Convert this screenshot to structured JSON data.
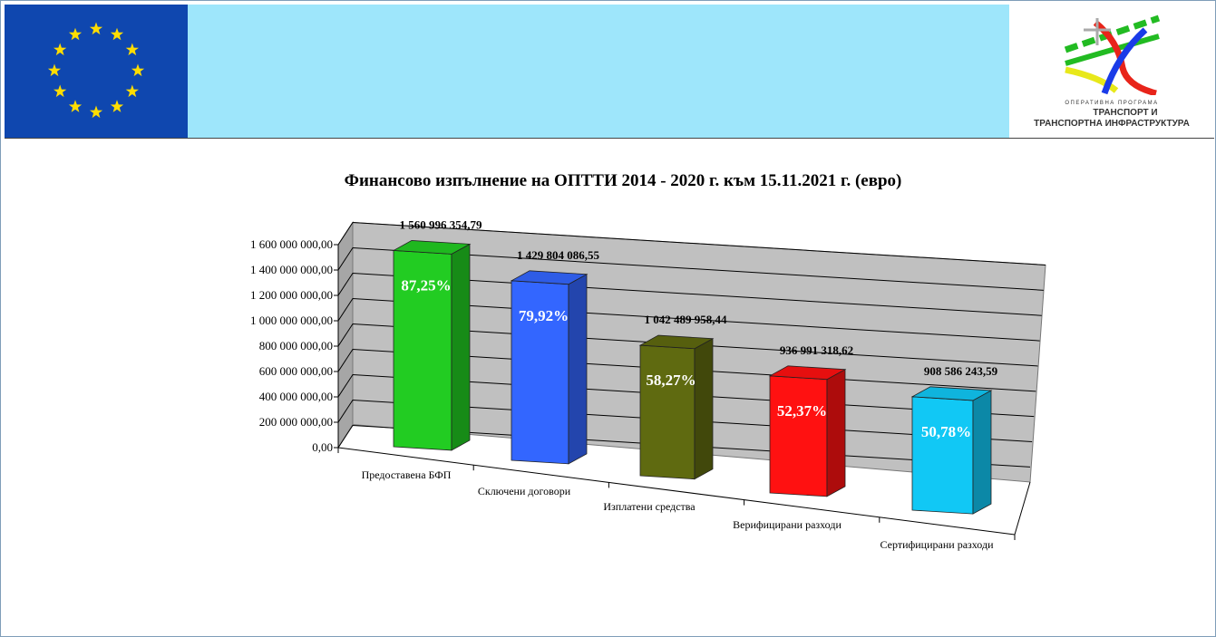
{
  "logo": {
    "subtitle": "ОПЕРАТИВНА ПРОГРАМА",
    "line1": "ТРАНСПОРТ И",
    "line2": "ТРАНСПОРТНА ИНФРАСТРУКТУРА"
  },
  "colors": {
    "header_bg": "#9ee6fb",
    "eu_blue": "#0f47af",
    "eu_star": "#ffdd00"
  },
  "chart_data": {
    "type": "bar",
    "title": "Финансово изпълнение на ОПТТИ 2014 - 2020 г. към 15.11.2021 г. (евро)",
    "categories": [
      "Предоставена БФП",
      "Сключени договори",
      "Изплатени средства",
      "Верифицирани разходи",
      "Сертифицирани разходи"
    ],
    "values": [
      1560996354.79,
      1429804086.55,
      1042489958.44,
      936991318.62,
      908586243.59
    ],
    "value_labels": [
      "1 560 996 354,79",
      "1 429 804 086,55",
      "1 042 489 958,44",
      "936 991 318,62",
      "908 586 243,59"
    ],
    "percent_labels": [
      "87,25%",
      "79,92%",
      "58,27%",
      "52,37%",
      "50,78%"
    ],
    "colors": [
      "#22cc22",
      "#3366ff",
      "#5f6a10",
      "#ff1111",
      "#11c8f5"
    ],
    "ylim": [
      0,
      1600000000
    ],
    "yticks": [
      "0,00",
      "200 000 000,00",
      "400 000 000,00",
      "600 000 000,00",
      "800 000 000,00",
      "1 000 000 000,00",
      "1 200 000 000,00",
      "1 400 000 000,00",
      "1 600 000 000,00"
    ],
    "grid": true,
    "legend": "none"
  }
}
